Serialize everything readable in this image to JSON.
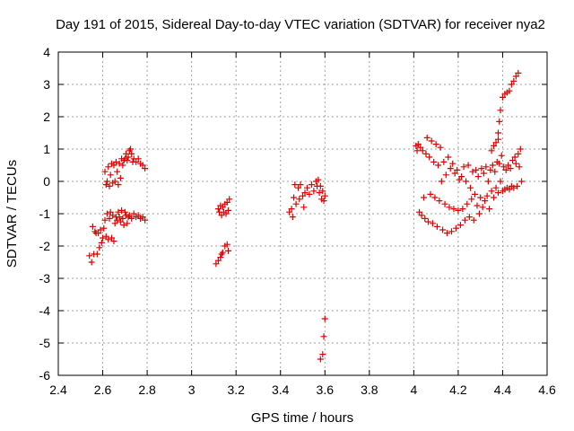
{
  "chart_data": {
    "type": "scatter",
    "title": "Day 191 of 2015, Sidereal Day-to-day VTEC variation (SDTVAR) for receiver nya2",
    "xlabel": "GPS time / hours",
    "ylabel": "SDTVAR / TECUs",
    "xlim": [
      2.4,
      4.6
    ],
    "ylim": [
      -6,
      4
    ],
    "xticks": [
      "2.4",
      "2.6",
      "2.8",
      "3",
      "3.2",
      "3.4",
      "3.6",
      "3.8",
      "4",
      "4.2",
      "4.4",
      "4.6"
    ],
    "yticks": [
      "-6",
      "-5",
      "-4",
      "-3",
      "-2",
      "-1",
      "0",
      "1",
      "2",
      "3",
      "4"
    ],
    "grid": true,
    "marker": "+",
    "marker_color": "#dd0000",
    "series": [
      {
        "name": "SDTVAR",
        "points": [
          [
            2.54,
            -2.3
          ],
          [
            2.55,
            -2.5
          ],
          [
            2.555,
            -1.4
          ],
          [
            2.56,
            -2.25
          ],
          [
            2.565,
            -1.55
          ],
          [
            2.57,
            -1.6
          ],
          [
            2.575,
            -2.25
          ],
          [
            2.58,
            -1.6
          ],
          [
            2.585,
            -2.05
          ],
          [
            2.59,
            -1.5
          ],
          [
            2.595,
            -1.9
          ],
          [
            2.6,
            -1.75
          ],
          [
            2.605,
            -1.45
          ],
          [
            2.61,
            -1.2
          ],
          [
            2.615,
            -1.7
          ],
          [
            2.62,
            -1.0
          ],
          [
            2.625,
            -1.8
          ],
          [
            2.63,
            -1.15
          ],
          [
            2.635,
            -0.95
          ],
          [
            2.64,
            -1.75
          ],
          [
            2.645,
            -1.05
          ],
          [
            2.65,
            -1.85
          ],
          [
            2.655,
            -1.3
          ],
          [
            2.66,
            -1.1
          ],
          [
            2.665,
            -1.2
          ],
          [
            2.67,
            -0.95
          ],
          [
            2.675,
            -1.1
          ],
          [
            2.68,
            -1.25
          ],
          [
            2.685,
            -0.9
          ],
          [
            2.69,
            -1.15
          ],
          [
            2.695,
            -1.35
          ],
          [
            2.7,
            -0.95
          ],
          [
            2.705,
            -1.05
          ],
          [
            2.71,
            -1.3
          ],
          [
            2.715,
            -1.1
          ],
          [
            2.72,
            -1.05
          ],
          [
            2.73,
            -1.15
          ],
          [
            2.74,
            -1.0
          ],
          [
            2.75,
            -1.1
          ],
          [
            2.76,
            -1.05
          ],
          [
            2.77,
            -1.15
          ],
          [
            2.78,
            -1.1
          ],
          [
            2.79,
            -1.2
          ],
          [
            2.61,
            0.3
          ],
          [
            2.615,
            -0.1
          ],
          [
            2.62,
            0.0
          ],
          [
            2.625,
            0.45
          ],
          [
            2.63,
            -0.15
          ],
          [
            2.635,
            0.2
          ],
          [
            2.64,
            0.55
          ],
          [
            2.645,
            -0.05
          ],
          [
            2.65,
            0.5
          ],
          [
            2.655,
            0.0
          ],
          [
            2.66,
            0.6
          ],
          [
            2.665,
            0.3
          ],
          [
            2.67,
            -0.1
          ],
          [
            2.675,
            0.55
          ],
          [
            2.68,
            0.1
          ],
          [
            2.685,
            0.7
          ],
          [
            2.69,
            0.5
          ],
          [
            2.695,
            0.65
          ],
          [
            2.7,
            0.7
          ],
          [
            2.705,
            0.85
          ],
          [
            2.71,
            0.65
          ],
          [
            2.715,
            0.75
          ],
          [
            2.72,
            0.95
          ],
          [
            2.725,
            1.0
          ],
          [
            2.73,
            0.85
          ],
          [
            2.735,
            0.6
          ],
          [
            2.74,
            0.7
          ],
          [
            2.75,
            0.6
          ],
          [
            2.76,
            0.7
          ],
          [
            2.77,
            0.55
          ],
          [
            2.78,
            0.5
          ],
          [
            2.79,
            0.4
          ],
          [
            3.11,
            -2.55
          ],
          [
            3.12,
            -2.45
          ],
          [
            3.13,
            -2.35
          ],
          [
            3.135,
            -2.25
          ],
          [
            3.14,
            -2.2
          ],
          [
            3.15,
            -2.0
          ],
          [
            3.16,
            -1.95
          ],
          [
            3.165,
            -2.15
          ],
          [
            3.12,
            -0.85
          ],
          [
            3.125,
            -0.95
          ],
          [
            3.13,
            -0.75
          ],
          [
            3.135,
            -1.05
          ],
          [
            3.14,
            -0.8
          ],
          [
            3.145,
            -0.95
          ],
          [
            3.15,
            -0.7
          ],
          [
            3.155,
            -1.0
          ],
          [
            3.16,
            -0.65
          ],
          [
            3.165,
            -0.9
          ],
          [
            3.17,
            -0.55
          ],
          [
            3.44,
            -0.95
          ],
          [
            3.45,
            -0.85
          ],
          [
            3.455,
            -1.1
          ],
          [
            3.46,
            -0.5
          ],
          [
            3.465,
            -0.1
          ],
          [
            3.47,
            -0.7
          ],
          [
            3.48,
            -0.2
          ],
          [
            3.485,
            -0.55
          ],
          [
            3.49,
            -0.1
          ],
          [
            3.5,
            -0.45
          ],
          [
            3.505,
            -0.8
          ],
          [
            3.51,
            -0.35
          ],
          [
            3.52,
            -0.2
          ],
          [
            3.53,
            -0.4
          ],
          [
            3.54,
            -0.1
          ],
          [
            3.55,
            -0.3
          ],
          [
            3.56,
            0.0
          ],
          [
            3.565,
            -0.15
          ],
          [
            3.57,
            0.05
          ],
          [
            3.575,
            -0.35
          ],
          [
            3.58,
            -0.15
          ],
          [
            3.585,
            -0.55
          ],
          [
            3.59,
            -0.3
          ],
          [
            3.595,
            -0.6
          ],
          [
            3.6,
            -0.45
          ],
          [
            3.58,
            -5.5
          ],
          [
            3.59,
            -5.35
          ],
          [
            3.595,
            -4.8
          ],
          [
            3.6,
            -4.25
          ],
          [
            4.01,
            1.1
          ],
          [
            4.015,
            0.95
          ],
          [
            4.02,
            1.15
          ],
          [
            4.025,
            -0.95
          ],
          [
            4.03,
            1.05
          ],
          [
            4.035,
            -1.05
          ],
          [
            4.04,
            0.95
          ],
          [
            4.045,
            -0.5
          ],
          [
            4.05,
            -1.15
          ],
          [
            4.055,
            0.85
          ],
          [
            4.06,
            1.35
          ],
          [
            4.065,
            -1.25
          ],
          [
            4.07,
            0.75
          ],
          [
            4.075,
            -0.4
          ],
          [
            4.08,
            1.25
          ],
          [
            4.085,
            -1.3
          ],
          [
            4.09,
            0.6
          ],
          [
            4.095,
            -0.5
          ],
          [
            4.1,
            1.15
          ],
          [
            4.105,
            -1.4
          ],
          [
            4.11,
            0.5
          ],
          [
            4.115,
            -0.6
          ],
          [
            4.12,
            1.05
          ],
          [
            4.125,
            0.0
          ],
          [
            4.13,
            -1.5
          ],
          [
            4.135,
            0.6
          ],
          [
            4.14,
            -0.7
          ],
          [
            4.145,
            0.2
          ],
          [
            4.15,
            -1.6
          ],
          [
            4.155,
            0.75
          ],
          [
            4.16,
            -0.8
          ],
          [
            4.165,
            0.4
          ],
          [
            4.17,
            -1.55
          ],
          [
            4.175,
            0.55
          ],
          [
            4.18,
            -0.85
          ],
          [
            4.185,
            0.25
          ],
          [
            4.19,
            -1.45
          ],
          [
            4.195,
            0.35
          ],
          [
            4.2,
            -0.9
          ],
          [
            4.205,
            0.05
          ],
          [
            4.21,
            -1.35
          ],
          [
            4.215,
            0.15
          ],
          [
            4.22,
            -0.85
          ],
          [
            4.225,
            0.45
          ],
          [
            4.23,
            -1.2
          ],
          [
            4.235,
            0.0
          ],
          [
            4.24,
            -0.7
          ],
          [
            4.245,
            0.5
          ],
          [
            4.25,
            -1.1
          ],
          [
            4.255,
            -0.2
          ],
          [
            4.26,
            -0.55
          ],
          [
            4.265,
            0.3
          ],
          [
            4.27,
            -1.2
          ],
          [
            4.275,
            -0.4
          ],
          [
            4.28,
            0.35
          ],
          [
            4.285,
            -0.75
          ],
          [
            4.29,
            0.15
          ],
          [
            4.295,
            -1.0
          ],
          [
            4.3,
            -0.5
          ],
          [
            4.305,
            0.4
          ],
          [
            4.31,
            -0.8
          ],
          [
            4.315,
            0.25
          ],
          [
            4.32,
            -0.6
          ],
          [
            4.325,
            0.45
          ],
          [
            4.33,
            -0.45
          ],
          [
            4.335,
            0.0
          ],
          [
            4.34,
            -0.85
          ],
          [
            4.345,
            0.35
          ],
          [
            4.35,
            -0.3
          ],
          [
            4.355,
            0.5
          ],
          [
            4.36,
            -0.5
          ],
          [
            4.365,
            0.3
          ],
          [
            4.37,
            -0.2
          ],
          [
            4.375,
            0.6
          ],
          [
            4.38,
            -0.35
          ],
          [
            4.385,
            0.55
          ],
          [
            4.39,
            0.0
          ],
          [
            4.395,
            0.8
          ],
          [
            4.4,
            -0.3
          ],
          [
            4.405,
            0.45
          ],
          [
            4.41,
            -0.25
          ],
          [
            4.415,
            0.35
          ],
          [
            4.42,
            -0.2
          ],
          [
            4.425,
            0.5
          ],
          [
            4.43,
            -0.25
          ],
          [
            4.435,
            0.4
          ],
          [
            4.44,
            -0.15
          ],
          [
            4.445,
            0.65
          ],
          [
            4.45,
            -0.2
          ],
          [
            4.455,
            0.75
          ],
          [
            4.46,
            0.55
          ],
          [
            4.465,
            -0.15
          ],
          [
            4.47,
            0.85
          ],
          [
            4.475,
            0.45
          ],
          [
            4.48,
            1.0
          ],
          [
            4.485,
            0.0
          ],
          [
            4.38,
            1.5
          ],
          [
            4.385,
            1.85
          ],
          [
            4.39,
            2.2
          ],
          [
            4.4,
            2.6
          ],
          [
            4.41,
            2.7
          ],
          [
            4.42,
            2.75
          ],
          [
            4.43,
            2.8
          ],
          [
            4.44,
            3.0
          ],
          [
            4.45,
            3.1
          ],
          [
            4.46,
            3.25
          ],
          [
            4.47,
            3.35
          ],
          [
            4.35,
            0.95
          ],
          [
            4.36,
            1.1
          ],
          [
            4.37,
            1.2
          ],
          [
            4.38,
            1.3
          ]
        ]
      }
    ]
  }
}
